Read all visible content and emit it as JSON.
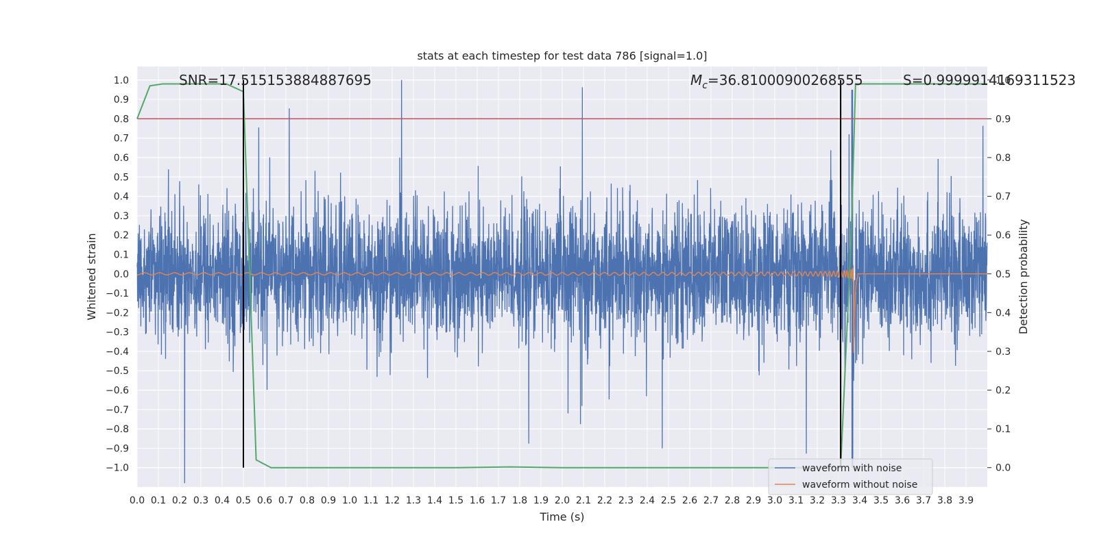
{
  "chart_data": {
    "type": "line",
    "title": "stats at each timestep for test data 786 [signal=1.0]",
    "xlabel": "Time (s)",
    "ylabel_left": "Whitened strain",
    "ylabel_right": "Detection probability",
    "xlim": [
      0.0,
      4.0
    ],
    "ylim_left": [
      -1.1,
      1.07
    ],
    "ylim_right": [
      -0.05,
      1.035
    ],
    "x_ticks": [
      "0.0",
      "0.1",
      "0.2",
      "0.3",
      "0.4",
      "0.5",
      "0.6",
      "0.7",
      "0.8",
      "0.9",
      "1.0",
      "1.1",
      "1.2",
      "1.3",
      "1.4",
      "1.5",
      "1.6",
      "1.7",
      "1.8",
      "1.9",
      "2.0",
      "2.1",
      "2.2",
      "2.3",
      "2.4",
      "2.5",
      "2.6",
      "2.7",
      "2.8",
      "2.9",
      "3.0",
      "3.1",
      "3.2",
      "3.3",
      "3.4",
      "3.5",
      "3.6",
      "3.7",
      "3.8",
      "3.9"
    ],
    "y_left_ticks": [
      "1.0",
      "0.9",
      "0.8",
      "0.7",
      "0.6",
      "0.5",
      "0.4",
      "0.3",
      "0.2",
      "0.1",
      "0.0",
      "−0.1",
      "−0.2",
      "−0.3",
      "−0.4",
      "−0.5",
      "−0.6",
      "−0.7",
      "−0.8",
      "−0.9",
      "−1.0"
    ],
    "y_right_ticks": [
      "0.0",
      "0.1",
      "0.2",
      "0.3",
      "0.4",
      "0.5",
      "0.6",
      "0.7",
      "0.8",
      "0.9",
      "1.0"
    ],
    "grid": true,
    "legend_position": "lower right",
    "annotations": {
      "snr": "SNR=17.515153884887695",
      "mc_symbol": "M",
      "mc_sub": "c",
      "mc_value": "=36.81000900268555",
      "s": "S=0.9999914169311523"
    },
    "series": [
      {
        "name": "waveform with noise",
        "color": "#4c72b0",
        "axis": "left",
        "description_points": "noise amplitude roughly ±0.4 with spikes to ±0.6, merger spike near t=3.37 reaching ~0.95 and ~-1.0"
      },
      {
        "name": "waveform without noise",
        "color": "#dd8452",
        "axis": "left",
        "chirp_start_amp": 0.01,
        "chirp_peak_time": 3.37,
        "chirp_peak_amp": 0.57,
        "ringdown_end": 3.39
      },
      {
        "name": "detection probability",
        "color": "#55a868",
        "axis": "right",
        "x": [
          0.0,
          0.06,
          0.12,
          0.2,
          0.3,
          0.42,
          0.5,
          0.56,
          0.63,
          0.8,
          1.0,
          1.5,
          1.75,
          2.0,
          2.5,
          3.0,
          3.3,
          3.31,
          3.36,
          3.38,
          3.4,
          3.6,
          3.8,
          3.95,
          4.0
        ],
        "y": [
          0.9,
          0.985,
          0.99,
          0.99,
          0.99,
          0.99,
          0.97,
          0.02,
          0.0,
          0.0,
          0.0,
          0.0,
          0.002,
          0.0,
          0.0,
          0.0,
          0.0,
          0.0,
          0.6,
          0.99,
          0.99,
          0.99,
          0.99,
          0.99,
          0.99
        ]
      }
    ],
    "threshold_line": {
      "axis": "right",
      "value": 0.9,
      "color": "#c44e52"
    },
    "vertical_lines": [
      0.5,
      3.31
    ]
  }
}
